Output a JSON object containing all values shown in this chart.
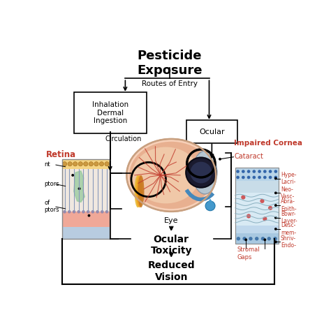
{
  "title": "Pesticide\nExposure",
  "bg_color": "#ffffff",
  "text_black": "#000000",
  "text_red": "#c0392b",
  "routes_label": "Routes of Entry",
  "box1_text": "Inhalation\nDermal\nIngestion",
  "box2_text": "Ocular",
  "circulation_text": "Circulation",
  "eye_label": "Eye",
  "ocular_toxicity": "Ocular\nToxicity",
  "reduced_vision": "Reduced\nVision",
  "retina_label": "Retina",
  "impaired_cornea": "Impaired Cornea",
  "cataract": "Cataract",
  "cornea_right_labels": [
    "Hype-\nLacri-",
    "Neo-\nVasc-",
    "Abra-\nEpith-",
    "Bowr-\nLayer-",
    "Desc-\nmem-",
    "Shriv-\nEndo-"
  ],
  "cornea_bot_labels": [
    "Stromal\nGaps"
  ],
  "retina_left_labels": [
    "nt",
    "ptors",
    "of\nptors"
  ]
}
